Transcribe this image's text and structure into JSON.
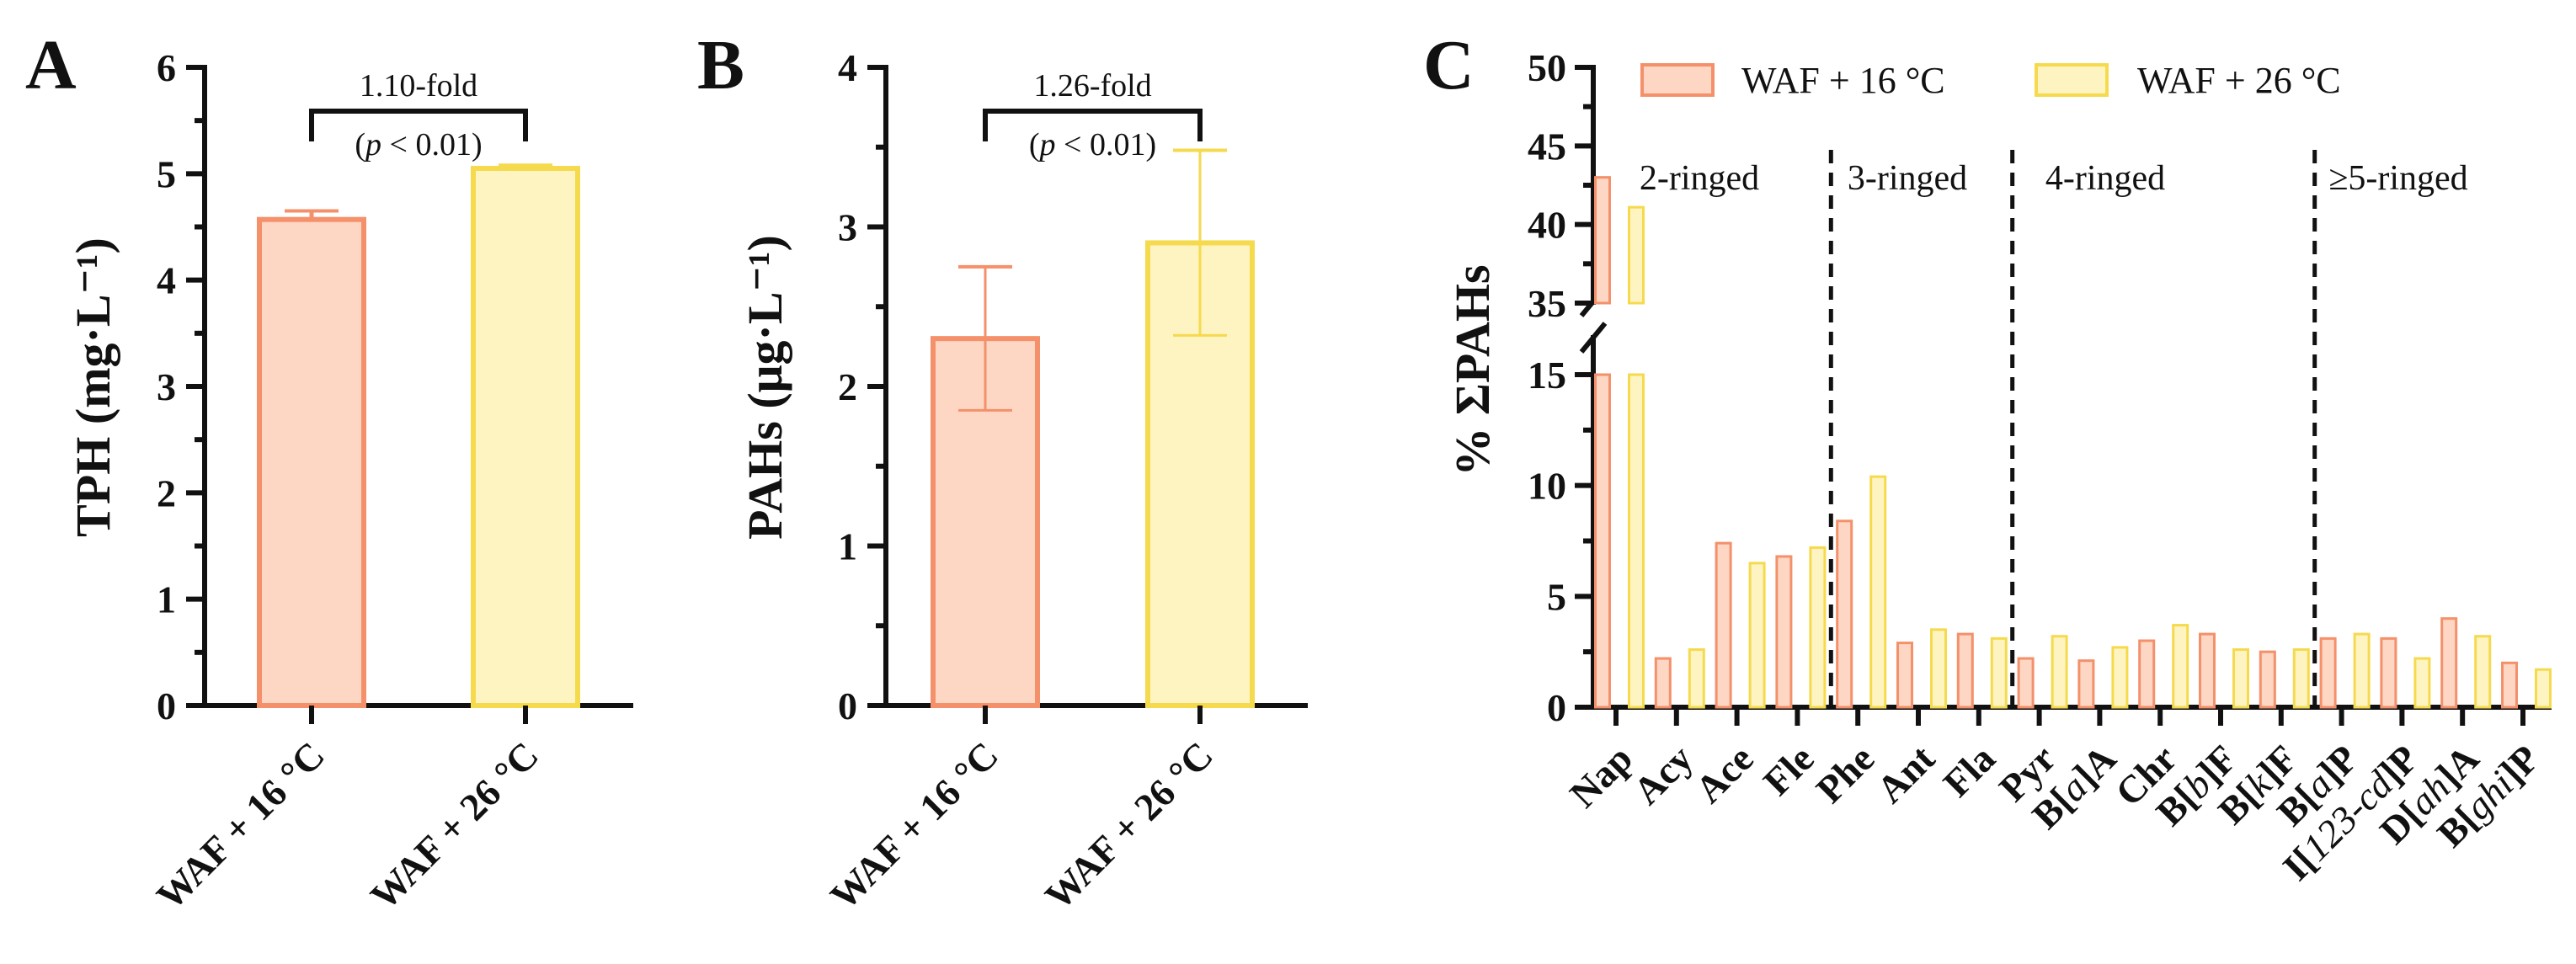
{
  "colors": {
    "c16_fill": "#fdd7c4",
    "c16_stroke": "#f4906a",
    "c26_fill": "#fdf4c2",
    "c26_stroke": "#f6da4e",
    "axis": "#111111"
  },
  "chart_data": [
    {
      "panel": "A",
      "type": "bar",
      "ylabel": "TPH (mg·L⁻¹)",
      "ylim": [
        0,
        6
      ],
      "yticks": [
        "0",
        "1",
        "2",
        "3",
        "4",
        "5",
        "6"
      ],
      "categories": [
        "WAF + 16 °C",
        "WAF + 26 °C"
      ],
      "values": [
        4.57,
        5.05
      ],
      "errors": [
        0.08,
        0.03
      ],
      "annotation": {
        "fold": "1.10-fold",
        "p": "(p < 0.01)"
      }
    },
    {
      "panel": "B",
      "type": "bar",
      "ylabel": "PAHs (μg·L⁻¹)",
      "ylim": [
        0,
        4
      ],
      "yticks": [
        "0",
        "1",
        "2",
        "3",
        "4"
      ],
      "categories": [
        "WAF + 16 °C",
        "WAF + 26 °C"
      ],
      "values": [
        2.3,
        2.9
      ],
      "errors": [
        0.45,
        0.58
      ],
      "annotation": {
        "fold": "1.26-fold",
        "p": "(p < 0.01)"
      }
    },
    {
      "panel": "C",
      "type": "bar",
      "ylabel": "% ΣPAHs",
      "ylim_lower": [
        0,
        15
      ],
      "ylim_upper": [
        35,
        50
      ],
      "yticks_lower": [
        "0",
        "5",
        "10",
        "15"
      ],
      "yticks_upper": [
        "35",
        "40",
        "45",
        "50"
      ],
      "legend": [
        "WAF + 16 °C",
        "WAF + 26 °C"
      ],
      "legend_position": "top",
      "categories": [
        "Nap",
        "Acy",
        "Ace",
        "Fle",
        "Phe",
        "Ant",
        "Fla",
        "Pyr",
        "B[a]A",
        "Chr",
        "B[b]F",
        "B[k]F",
        "B[a]P",
        "I[123-cd]P",
        "D[ah]A",
        "B[ghi]P"
      ],
      "series": [
        {
          "name": "WAF + 16 °C",
          "values": [
            43.0,
            2.2,
            7.4,
            6.8,
            8.4,
            2.9,
            3.3,
            2.2,
            2.1,
            3.0,
            3.3,
            2.5,
            3.1,
            3.1,
            4.0,
            2.0
          ]
        },
        {
          "name": "WAF + 26 °C",
          "values": [
            41.1,
            2.6,
            6.5,
            7.2,
            10.4,
            3.5,
            3.1,
            3.2,
            2.7,
            3.7,
            2.6,
            2.6,
            3.3,
            2.2,
            3.2,
            1.7
          ]
        }
      ],
      "groups": [
        {
          "label": "2-ringed"
        },
        {
          "label": "3-ringed"
        },
        {
          "label": "4-ringed"
        },
        {
          "label": "≥5-ringed"
        }
      ]
    }
  ]
}
